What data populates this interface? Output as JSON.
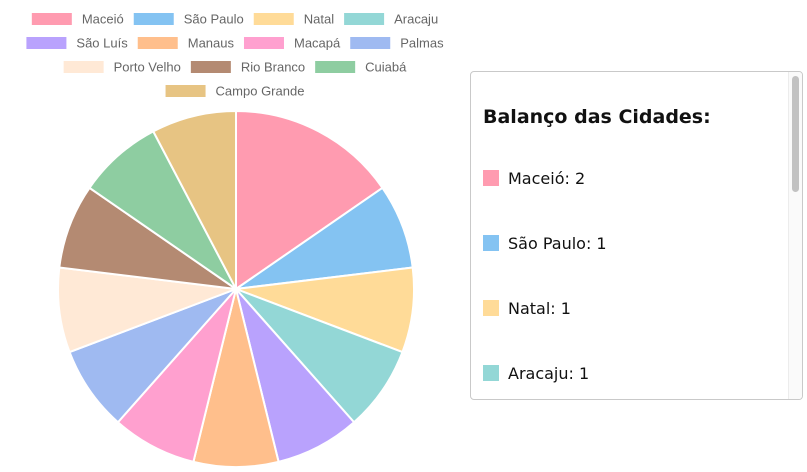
{
  "chart_data": {
    "type": "pie",
    "categories": [
      "Maceió",
      "São Paulo",
      "Natal",
      "Aracaju",
      "São Luís",
      "Manaus",
      "Macapá",
      "Palmas",
      "Porto Velho",
      "Rio Branco",
      "Cuiabá",
      "Campo Grande"
    ],
    "values": [
      2,
      1,
      1,
      1,
      1,
      1,
      1,
      1,
      1,
      1,
      1,
      1
    ],
    "colors": [
      "#ff9bb0",
      "#84c3f2",
      "#ffdb98",
      "#93d7d6",
      "#b9a2fd",
      "#ffbf8c",
      "#ffa0cf",
      "#9fbaf1",
      "#ffe9d6",
      "#b48a72",
      "#8ecda1",
      "#e7c483"
    ],
    "legend_position": "top",
    "title": "",
    "xlabel": "",
    "ylabel": ""
  },
  "panel": {
    "title": "Balanço das Cidades:",
    "items": [
      {
        "label": "Maceió: 2",
        "color": "#ff9bb0"
      },
      {
        "label": "São Paulo: 1",
        "color": "#84c3f2"
      },
      {
        "label": "Natal: 1",
        "color": "#ffdb98"
      },
      {
        "label": "Aracaju: 1",
        "color": "#93d7d6"
      }
    ]
  }
}
